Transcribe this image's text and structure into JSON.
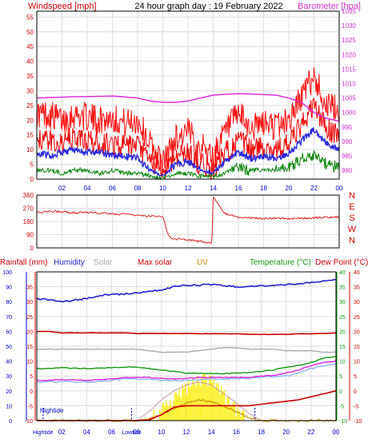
{
  "page_title": "24 hour graph day : 19 February 2022",
  "colors": {
    "wind": "#ee0000",
    "gust": "#ff1111",
    "avg": "#2a2add",
    "green": "#118811",
    "baro": "#dd22dd",
    "dir": "#dd2222",
    "rain": "#cc0000",
    "humidity": "#2222cc",
    "solar": "#aaaaaa",
    "maxsolar": "#cc0000",
    "uv": "#cc8800",
    "temp": "#119911",
    "dew": "#cc0000",
    "sun": "#ffee00",
    "axis_blue": "#0000cc",
    "axis_red": "#cc0000"
  },
  "chart_data": [
    {
      "type": "line",
      "title": "24 hour graph day : 19 February 2022",
      "left_axis_label": "Windspeed [mph]",
      "right_axis_label": "Barometer [hpa]",
      "x_ticks": [
        "02",
        "04",
        "06",
        "08",
        "10",
        "12",
        "14",
        "16",
        "18",
        "20",
        "22",
        "00"
      ],
      "y_left_ticks": [
        "0",
        "5",
        "10",
        "15",
        "20",
        "25",
        "30",
        "35",
        "40",
        "45",
        "50",
        "55"
      ],
      "y_right_ticks": [
        "980",
        "985",
        "990",
        "995",
        "1000",
        "1005",
        "1010",
        "1015",
        "1020",
        "1025",
        "1030",
        "1035"
      ],
      "ylim_left": [
        0,
        57
      ],
      "ylim_right": [
        977,
        1035
      ],
      "grid": true,
      "x_hours": [
        0,
        1,
        2,
        3,
        4,
        5,
        6,
        7,
        8,
        9,
        10,
        11,
        12,
        13,
        14,
        15,
        16,
        17,
        18,
        19,
        20,
        21,
        22,
        23,
        24
      ],
      "series": [
        {
          "key": "gust",
          "values": [
            22,
            22,
            20,
            22,
            21,
            20,
            21,
            19,
            20,
            12,
            5,
            14,
            16,
            11,
            8,
            16,
            22,
            17,
            19,
            18,
            20,
            28,
            35,
            25,
            23
          ]
        },
        {
          "key": "speed",
          "values": [
            14,
            13,
            12,
            14,
            13,
            12,
            12,
            11,
            11,
            6,
            2,
            8,
            9,
            5,
            3,
            9,
            13,
            10,
            11,
            10,
            12,
            18,
            25,
            17,
            15
          ]
        },
        {
          "key": "average",
          "values": [
            9,
            8,
            9,
            10,
            9,
            9,
            8,
            8,
            7,
            3,
            1,
            5,
            6,
            3,
            2,
            6,
            9,
            7,
            8,
            7,
            9,
            13,
            17,
            12,
            10
          ]
        },
        {
          "key": "green",
          "values": [
            3,
            3,
            2,
            3,
            3,
            2,
            3,
            2,
            2,
            1,
            0,
            2,
            2,
            1,
            1,
            2,
            4,
            3,
            3,
            3,
            4,
            7,
            8,
            5,
            4
          ]
        },
        {
          "key": "barometer",
          "values": [
            1005,
            1005.2,
            1005.3,
            1005.5,
            1005.5,
            1005.6,
            1005.7,
            1005.4,
            1005,
            1004,
            1003.5,
            1003.5,
            1004,
            1005,
            1006,
            1006.3,
            1006.5,
            1006.4,
            1006.2,
            1006,
            1005,
            1003.5,
            1000,
            998,
            997
          ]
        }
      ]
    },
    {
      "type": "line",
      "title": "",
      "y_ticks": [
        "0",
        "90",
        "180",
        "270",
        "360"
      ],
      "compass_labels": [
        "N",
        "W",
        "S",
        "E",
        "N"
      ],
      "ylim": [
        0,
        360
      ],
      "x_hours": [
        0,
        1,
        2,
        3,
        4,
        5,
        6,
        7,
        8,
        9,
        10,
        10.5,
        11,
        12,
        13,
        13.9,
        14,
        14.5,
        15,
        16,
        17,
        18,
        19,
        20,
        21,
        22,
        23,
        24
      ],
      "series": [
        {
          "key": "direction",
          "values": [
            240,
            250,
            245,
            240,
            242,
            238,
            232,
            230,
            220,
            215,
            210,
            70,
            62,
            55,
            45,
            30,
            350,
            280,
            230,
            210,
            205,
            200,
            205,
            200,
            202,
            205,
            208,
            210
          ]
        }
      ]
    },
    {
      "type": "line",
      "title": "",
      "legend": [
        "Rainfall (mm)",
        "Humidity",
        "Solar",
        "Max solar",
        "UV",
        "Temperature (°C)",
        "Dew Point (°C)"
      ],
      "y_left_outer_ticks": [
        "0",
        "10",
        "20",
        "30",
        "40",
        "50",
        "60",
        "70",
        "80",
        "90",
        "100"
      ],
      "y_left_inner_ticks": [
        "-10",
        "-5",
        "0",
        "5",
        "10",
        "15",
        "20",
        "25",
        "30",
        "35"
      ],
      "y_right_ticks": [
        "-10",
        "-5",
        "0",
        "5",
        "10",
        "15",
        "20",
        "25",
        "30",
        "35",
        "40"
      ],
      "ylim_temp": [
        -10,
        40
      ],
      "x_ticks": [
        "02",
        "04",
        "06",
        "08",
        "10",
        "12",
        "14",
        "16",
        "18",
        "20",
        "22",
        "00"
      ],
      "tide_label": "Hightide",
      "tide_markers": [
        {
          "hour": 0.5,
          "label": "Hightide"
        },
        {
          "hour": 7.6,
          "label": "Lowtide"
        },
        {
          "hour": 17.5,
          "label": ""
        }
      ],
      "x_hours": [
        0,
        1,
        2,
        3,
        4,
        5,
        6,
        7,
        8,
        9,
        10,
        11,
        12,
        13,
        14,
        15,
        16,
        17,
        18,
        19,
        20,
        21,
        22,
        23,
        24
      ],
      "series": [
        {
          "key": "humidity_temp_scale",
          "values": [
            31,
            30.5,
            30,
            30.5,
            31,
            32,
            32.5,
            32.5,
            33,
            33.5,
            34,
            35,
            35.5,
            35.5,
            35.8,
            35.5,
            35,
            35,
            35.3,
            35.5,
            35.8,
            36,
            36.5,
            37,
            37.5
          ]
        },
        {
          "key": "max_solar_line",
          "values": [
            20,
            20,
            19.5,
            19.5,
            19.5,
            19.5,
            19.5,
            19.5,
            19.3,
            19.3,
            19.3,
            19.3,
            19.3,
            19.2,
            19.2,
            19.2,
            19.2,
            19,
            19,
            19,
            19,
            19.2,
            19.2,
            19.3,
            19.5
          ]
        },
        {
          "key": "solar_gray",
          "values": [
            14,
            14,
            14,
            14,
            14,
            14,
            14,
            14,
            14,
            13.5,
            13,
            13,
            13,
            13.5,
            14,
            14.5,
            14.5,
            14,
            14,
            14,
            13.5,
            13.5,
            13.5,
            13,
            13
          ]
        },
        {
          "key": "temperature",
          "values": [
            7.5,
            7.5,
            7.8,
            7.6,
            7.5,
            7.6,
            7.8,
            8,
            8,
            7.5,
            7,
            6.5,
            6,
            6,
            5.8,
            5.8,
            6,
            6.2,
            6.5,
            7,
            8,
            8.5,
            9.5,
            11,
            11.5
          ]
        },
        {
          "key": "dew_point",
          "values": [
            3.5,
            3.5,
            3.8,
            3.7,
            3.5,
            3.8,
            4,
            4.5,
            4.5,
            4.5,
            4.2,
            4,
            4.2,
            4.5,
            4.5,
            4.5,
            4.5,
            4.5,
            5,
            5.2,
            6,
            7,
            8.5,
            9.5,
            10
          ]
        },
        {
          "key": "feels_light",
          "values": [
            3,
            3,
            3.2,
            3,
            3,
            3.2,
            3.5,
            4,
            4,
            3.8,
            3.5,
            3.5,
            3.5,
            3.8,
            4,
            4,
            4.2,
            4.2,
            4.5,
            4.8,
            5,
            6,
            7.5,
            8.5,
            9
          ]
        },
        {
          "key": "rainfall_total",
          "values": [
            -10,
            -10,
            -10,
            -10,
            -10,
            -10,
            -10,
            -10,
            -10,
            -9.8,
            -8,
            -5.5,
            -5,
            -5,
            -5,
            -5,
            -5,
            -5,
            -4.5,
            -4,
            -3.5,
            -3,
            -2,
            -1,
            0
          ]
        },
        {
          "key": "uv",
          "values": [
            -10,
            -10,
            -10,
            -10,
            -10,
            -10,
            -10,
            -10,
            -10,
            -9.5,
            -8,
            -6,
            -4,
            -3,
            -3.5,
            -5,
            -7,
            -9,
            -10,
            -10,
            -10,
            -10,
            -10,
            -10,
            -10
          ]
        },
        {
          "key": "solar_max_curve",
          "values": [
            -10,
            -10,
            -10,
            -10,
            -10,
            -10,
            -10,
            -10,
            -10,
            -7,
            -3,
            0,
            2,
            3,
            2,
            -1,
            -4,
            -7.5,
            -10,
            -10,
            -10,
            -10,
            -10,
            -10,
            -10
          ]
        },
        {
          "key": "solar_bars",
          "values": [
            -10,
            -10,
            -10,
            -10,
            -10,
            -10,
            -10,
            -10,
            -10,
            -9.8,
            -9,
            -5,
            0,
            2,
            1,
            -3,
            -8,
            -9.8,
            -10,
            -10,
            -10,
            -10,
            -10,
            -10,
            -10
          ]
        }
      ]
    }
  ]
}
